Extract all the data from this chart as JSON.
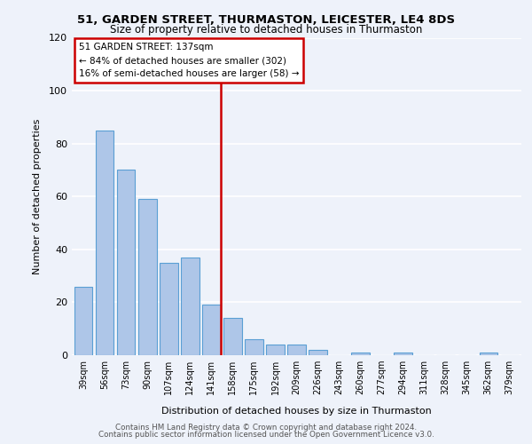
{
  "title_line1": "51, GARDEN STREET, THURMASTON, LEICESTER, LE4 8DS",
  "title_line2": "Size of property relative to detached houses in Thurmaston",
  "xlabel": "Distribution of detached houses by size in Thurmaston",
  "ylabel": "Number of detached properties",
  "bar_labels": [
    "39sqm",
    "56sqm",
    "73sqm",
    "90sqm",
    "107sqm",
    "124sqm",
    "141sqm",
    "158sqm",
    "175sqm",
    "192sqm",
    "209sqm",
    "226sqm",
    "243sqm",
    "260sqm",
    "277sqm",
    "294sqm",
    "311sqm",
    "328sqm",
    "345sqm",
    "362sqm",
    "379sqm"
  ],
  "bar_values": [
    26,
    85,
    70,
    59,
    35,
    37,
    19,
    14,
    6,
    4,
    4,
    2,
    0,
    1,
    0,
    1,
    0,
    0,
    0,
    1,
    0
  ],
  "bar_color": "#aec6e8",
  "bar_edge_color": "#5a9fd4",
  "vline_index": 6,
  "annotation_title": "51 GARDEN STREET: 137sqm",
  "annotation_line2": "← 84% of detached houses are smaller (302)",
  "annotation_line3": "16% of semi-detached houses are larger (58) →",
  "ylim_max": 120,
  "yticks": [
    0,
    20,
    40,
    60,
    80,
    100,
    120
  ],
  "footer_line1": "Contains HM Land Registry data © Crown copyright and database right 2024.",
  "footer_line2": "Contains public sector information licensed under the Open Government Licence v3.0.",
  "bg_color": "#eef2fa",
  "vline_color": "#cc0000",
  "ann_border_color": "#cc0000",
  "ann_bg_color": "#ffffff",
  "grid_color": "#ffffff"
}
